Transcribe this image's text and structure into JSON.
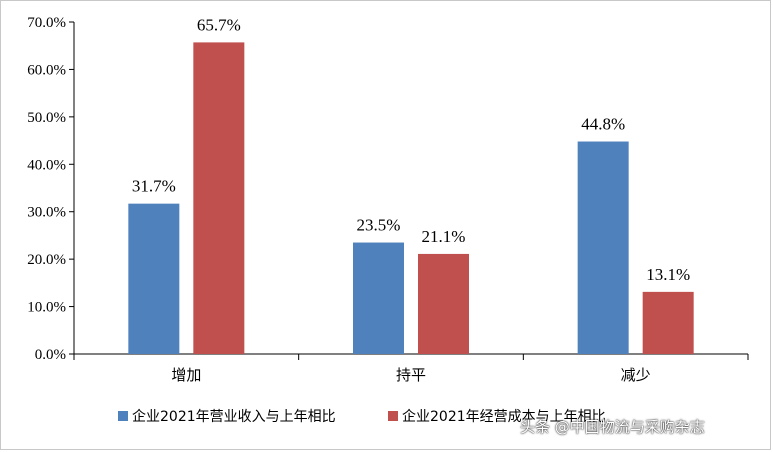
{
  "chart_data": {
    "type": "bar",
    "categories": [
      "增加",
      "持平",
      "减少"
    ],
    "series": [
      {
        "name": "企业2021年营业收入与上年相比",
        "values": [
          31.7,
          23.5,
          44.8
        ],
        "color": "#4f81bd",
        "labels": [
          "31.7%",
          "23.5%",
          "44.8%"
        ]
      },
      {
        "name": "企业2021年经营成本与上年相比",
        "values": [
          65.7,
          21.1,
          13.1
        ],
        "color": "#c0504d",
        "labels": [
          "65.7%",
          "21.1%",
          "13.1%"
        ]
      }
    ],
    "ylim": [
      0,
      70
    ],
    "yticks": [
      "0.0%",
      "10.0%",
      "20.0%",
      "30.0%",
      "40.0%",
      "50.0%",
      "60.0%",
      "70.0%"
    ],
    "legend": "bottom",
    "grid": false
  },
  "watermark": "头条 @中国物流与采购杂志"
}
